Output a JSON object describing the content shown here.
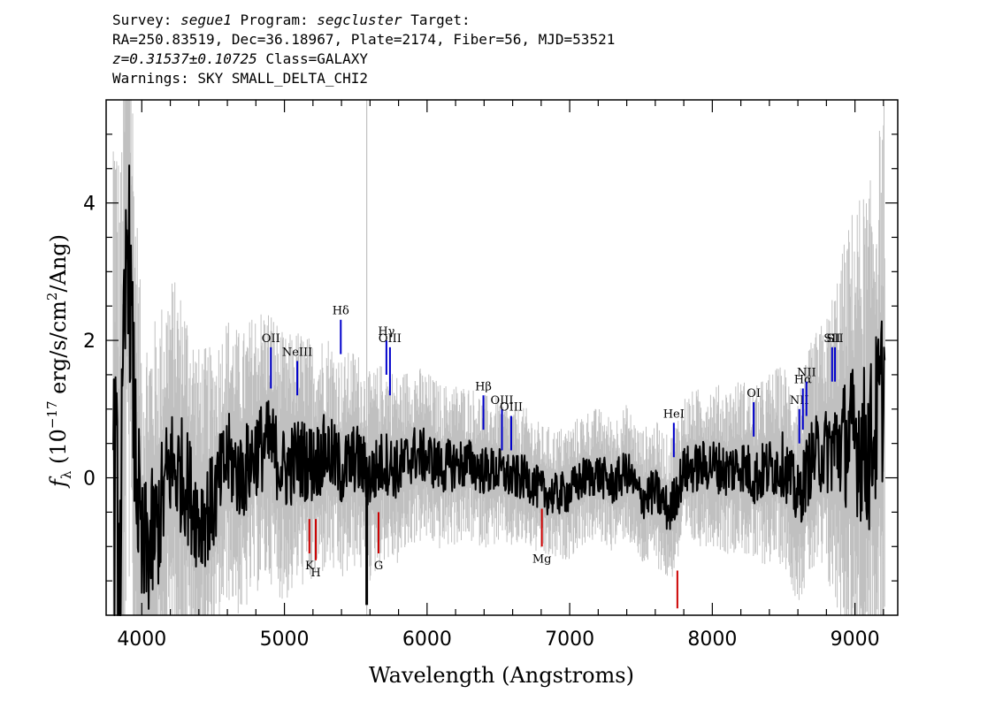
{
  "header": {
    "survey_label": "Survey:",
    "survey": "segue1",
    "program_label": "Program:",
    "program": "segcluster",
    "target_label": "Target:",
    "line2": "RA=250.83519, Dec=36.18967, Plate=2174, Fiber=56, MJD=53521",
    "z_text": "z=0.31537±0.10725",
    "class_text": "Class=GALAXY",
    "warnings": "Warnings: SKY SMALL_DELTA_CHI2"
  },
  "chart_data": {
    "type": "line",
    "xlabel": "Wavelength (Angstroms)",
    "ylabel": "f_λ (10^-17 erg/s/cm^2/Ang)",
    "ylabel_parts": {
      "f": "f",
      "lambda": "λ",
      "pre": " (10",
      "exp": "−17",
      "mid": " erg/s/cm",
      "exp2": "2",
      "post": "/Ang)"
    },
    "xlim": [
      3750,
      9300
    ],
    "ylim": [
      -2.0,
      5.5
    ],
    "xticks": [
      4000,
      5000,
      6000,
      7000,
      8000,
      9000
    ],
    "yticks": [
      0,
      2,
      4
    ],
    "x_tick_labels": [
      "4000",
      "5000",
      "6000",
      "7000",
      "8000",
      "9000"
    ],
    "y_tick_labels": [
      "0",
      "2",
      "4"
    ],
    "colors": {
      "flux": "#000000",
      "error": "#c0c0c0",
      "emission": "#0000cc",
      "absorption": "#cc0000"
    },
    "series": [
      {
        "role": "flux",
        "x": [
          3800,
          3850,
          3900,
          3950,
          4000,
          4100,
          4200,
          4300,
          4400,
          4500,
          4600,
          4700,
          4800,
          4900,
          5000,
          5100,
          5200,
          5300,
          5400,
          5500,
          5600,
          5700,
          5800,
          5900,
          6000,
          6100,
          6200,
          6300,
          6400,
          6500,
          6600,
          6700,
          6800,
          6900,
          7000,
          7100,
          7200,
          7300,
          7400,
          7500,
          7600,
          7700,
          7800,
          7900,
          8000,
          8100,
          8200,
          8300,
          8400,
          8500,
          8600,
          8700,
          8800,
          8900,
          9000,
          9100,
          9200
        ],
        "y": [
          0.0,
          -1.0,
          3.9,
          0.6,
          -1.2,
          -0.8,
          0.2,
          0.0,
          -0.6,
          -0.4,
          0.3,
          0.0,
          0.4,
          0.5,
          0.1,
          0.3,
          0.2,
          0.4,
          0.1,
          0.3,
          0.0,
          0.25,
          0.1,
          0.35,
          0.3,
          0.15,
          0.2,
          0.2,
          0.1,
          0.1,
          0.0,
          0.0,
          -0.2,
          -0.25,
          -0.2,
          0.0,
          0.05,
          -0.1,
          0.1,
          -0.3,
          -0.2,
          -0.5,
          0.1,
          0.15,
          0.2,
          0.1,
          0.2,
          0.0,
          0.15,
          0.2,
          -0.3,
          0.3,
          0.4,
          0.5,
          0.6,
          0.4,
          1.3
        ]
      },
      {
        "role": "error",
        "x": [
          3800,
          4000,
          4200,
          4400,
          4600,
          4800,
          5000,
          5200,
          5400,
          5600,
          5800,
          6000,
          6200,
          6400,
          6600,
          6800,
          7000,
          7200,
          7400,
          7600,
          7800,
          8000,
          8200,
          8400,
          8600,
          8800,
          9000,
          9200
        ],
        "y": [
          4.5,
          2.5,
          2.0,
          1.8,
          1.5,
          1.5,
          1.4,
          1.3,
          1.2,
          1.1,
          1.0,
          0.9,
          0.85,
          0.8,
          0.75,
          0.7,
          0.7,
          0.7,
          0.7,
          0.75,
          0.8,
          0.85,
          0.9,
          1.0,
          1.1,
          1.4,
          2.5,
          3.0
        ]
      }
    ],
    "lines": [
      {
        "label": "OII",
        "x": 4905,
        "y0": 1.3,
        "y1": 1.9,
        "kind": "emission"
      },
      {
        "label": "NeIII",
        "x": 5090,
        "y0": 1.2,
        "y1": 1.7,
        "kind": "emission"
      },
      {
        "label": "Hδ",
        "x": 5395,
        "y0": 1.8,
        "y1": 2.3,
        "kind": "emission"
      },
      {
        "label": "Hγ",
        "x": 5715,
        "y0": 1.5,
        "y1": 2.0,
        "kind": "emission"
      },
      {
        "label": "OIII",
        "x": 5740,
        "y0": 1.2,
        "y1": 1.9,
        "kind": "emission"
      },
      {
        "label": "Hβ",
        "x": 6395,
        "y0": 0.7,
        "y1": 1.2,
        "kind": "emission"
      },
      {
        "label": "OIII",
        "x": 6525,
        "y0": 0.4,
        "y1": 1.0,
        "kind": "emission"
      },
      {
        "label": "OIII",
        "x": 6590,
        "y0": 0.4,
        "y1": 0.9,
        "kind": "emission"
      },
      {
        "label": "HeI",
        "x": 7730,
        "y0": 0.3,
        "y1": 0.8,
        "kind": "emission"
      },
      {
        "label": "OI",
        "x": 8290,
        "y0": 0.6,
        "y1": 1.1,
        "kind": "emission"
      },
      {
        "label": "NII",
        "x": 8610,
        "y0": 0.5,
        "y1": 1.0,
        "kind": "emission"
      },
      {
        "label": "Hα",
        "x": 8635,
        "y0": 0.7,
        "y1": 1.3,
        "kind": "emission"
      },
      {
        "label": "NII",
        "x": 8660,
        "y0": 0.9,
        "y1": 1.4,
        "kind": "emission"
      },
      {
        "label": "SII",
        "x": 8840,
        "y0": 1.4,
        "y1": 1.9,
        "kind": "emission"
      },
      {
        "label": "SII",
        "x": 8860,
        "y0": 1.4,
        "y1": 1.9,
        "kind": "emission"
      },
      {
        "label": "K",
        "x": 5175,
        "y0": -1.1,
        "y1": -0.6,
        "kind": "absorption"
      },
      {
        "label": "H",
        "x": 5220,
        "y0": -1.2,
        "y1": -0.6,
        "kind": "absorption"
      },
      {
        "label": "G",
        "x": 5660,
        "y0": -1.1,
        "y1": -0.5,
        "kind": "absorption"
      },
      {
        "label": "Mg",
        "x": 6805,
        "y0": -1.0,
        "y1": -0.45,
        "kind": "absorption"
      },
      {
        "label": "",
        "x": 7755,
        "y0": -1.9,
        "y1": -1.35,
        "kind": "absorption"
      }
    ],
    "grid": false,
    "legend": "none"
  }
}
